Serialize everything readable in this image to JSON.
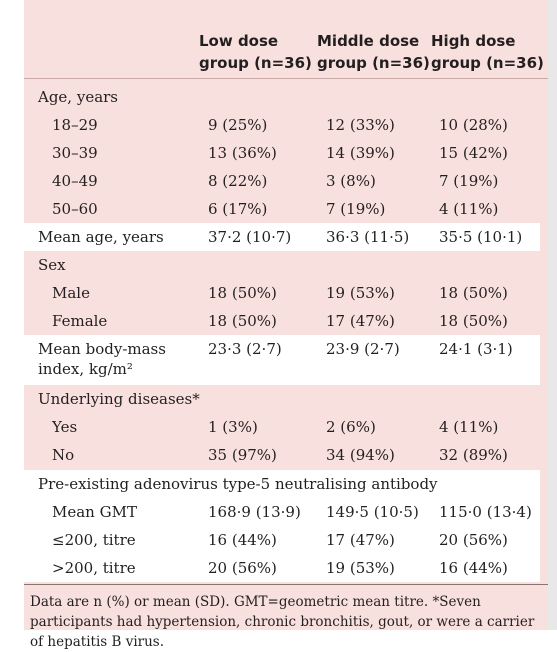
{
  "headers": {
    "low": [
      "Low dose",
      "group (n=36)"
    ],
    "middle": [
      "Middle dose",
      "group (n=36)"
    ],
    "high": [
      "High dose",
      "group (n=36)"
    ]
  },
  "rows": [
    {
      "label": "Age, years",
      "section": true
    },
    {
      "label": "18–29",
      "low": "9 (25%)",
      "middle": "12 (33%)",
      "high": "10 (28%)"
    },
    {
      "label": "30–39",
      "low": "13 (36%)",
      "middle": "14 (39%)",
      "high": "15 (42%)"
    },
    {
      "label": "40–49",
      "low": "8 (22%)",
      "middle": "3 (8%)",
      "high": "7 (19%)"
    },
    {
      "label": "50–60",
      "low": "6 (17%)",
      "middle": "7 (19%)",
      "high": "4 (11%)"
    },
    {
      "label": "Mean age, years",
      "low": "37·2 (10·7)",
      "middle": "36·3 (11·5)",
      "high": "35·5 (10·1)",
      "white": true
    },
    {
      "label": "Sex",
      "section": true
    },
    {
      "label": "Male",
      "low": "18 (50%)",
      "middle": "19 (53%)",
      "high": "18 (50%)"
    },
    {
      "label": "Female",
      "low": "18 (50%)",
      "middle": "17 (47%)",
      "high": "18 (50%)"
    },
    {
      "label": "Mean body-mass",
      "label2": "index, kg/m²",
      "low": "23·3 (2·7)",
      "middle": "23·9 (2·7)",
      "high": "24·1 (3·1)",
      "white": true
    },
    {
      "label": "Underlying diseases*",
      "section": true
    },
    {
      "label": "Yes",
      "low": "1 (3%)",
      "middle": "2 (6%)",
      "high": "4 (11%)"
    },
    {
      "label": "No",
      "low": "35 (97%)",
      "middle": "34 (94%)",
      "high": "32 (89%)"
    },
    {
      "label": "Pre-existing adenovirus type-5 neutralising antibody",
      "section": true,
      "white": true
    },
    {
      "label": "Mean GMT",
      "low": "168·9 (13·9)",
      "middle": "149·5 (10·5)",
      "high": "115·0 (13·4)",
      "white": true
    },
    {
      "label": "≤200, titre",
      "low": "16 (44%)",
      "middle": "17 (47%)",
      "high": "20 (56%)",
      "white": true
    },
    {
      "label": ">200, titre",
      "low": "20 (56%)",
      "middle": "19 (53%)",
      "high": "16 (44%)",
      "white": true
    }
  ],
  "footnote": "Data are n (%) or mean (SD). GMT=geometric mean titre. *Seven participants had hypertension, chronic bronchitis, gout, or were a carrier of hepatitis B virus."
}
